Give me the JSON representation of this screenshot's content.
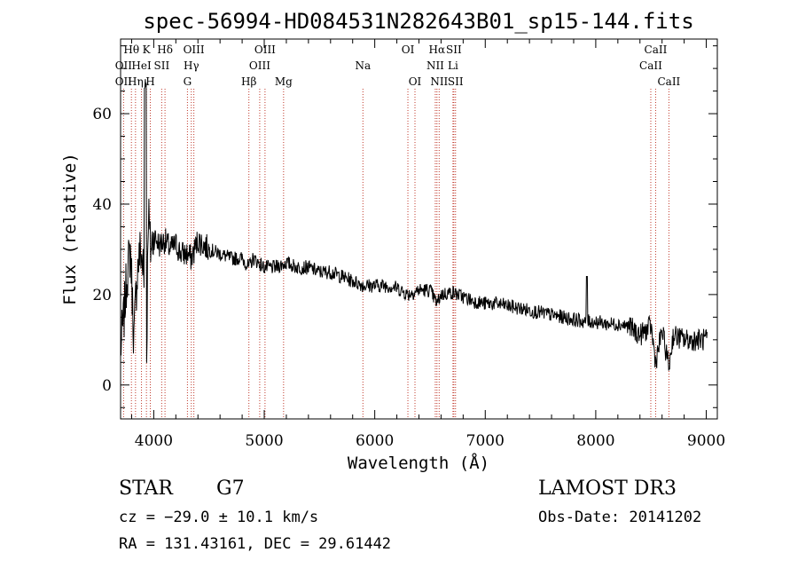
{
  "chart_data": {
    "type": "line",
    "title": "spec-56994-HD084531N282643B01_sp15-144.fits",
    "xlabel": "Wavelength (Å)",
    "ylabel": "Flux (relative)",
    "xlim": [
      3700,
      9100
    ],
    "ylim": [
      -7.5,
      76.5
    ],
    "xticks": [
      4000,
      5000,
      6000,
      7000,
      8000,
      9000
    ],
    "yticks": [
      0,
      20,
      40,
      60
    ],
    "series": [
      {
        "name": "spectrum",
        "anchor_x": [
          3700,
          3730,
          3760,
          3790,
          3820,
          3850,
          3880,
          3910,
          3935,
          3950,
          3970,
          4000,
          4050,
          4100,
          4150,
          4200,
          4250,
          4300,
          4340,
          4400,
          4500,
          4600,
          4700,
          4800,
          4860,
          4900,
          5000,
          5100,
          5200,
          5300,
          5400,
          5500,
          5600,
          5700,
          5800,
          5900,
          6000,
          6100,
          6200,
          6300,
          6400,
          6500,
          6563,
          6600,
          6700,
          6800,
          6900,
          7000,
          7100,
          7200,
          7300,
          7400,
          7500,
          7600,
          7700,
          7800,
          7900,
          8000,
          8100,
          8200,
          8300,
          8400,
          8500,
          8542,
          8600,
          8662,
          8700,
          8800,
          8900,
          9000
        ],
        "anchor_y": [
          8,
          15,
          25,
          30,
          10,
          25,
          30,
          25,
          3,
          40,
          30,
          33,
          31,
          32,
          30,
          31,
          29,
          29,
          28,
          32,
          30,
          29,
          28,
          28,
          26,
          28,
          26,
          26,
          27,
          26,
          26,
          25,
          25,
          24,
          23,
          22,
          22,
          22,
          21.5,
          20,
          21,
          21,
          18,
          20,
          20.5,
          19.5,
          18.5,
          18,
          18,
          17.5,
          17,
          16.5,
          16,
          15.5,
          15,
          14.5,
          14,
          14,
          13.5,
          13.5,
          13,
          11,
          13,
          5,
          12,
          4,
          11,
          10,
          10,
          10
        ]
      }
    ],
    "lines": [
      {
        "label": "Hθ",
        "x": 3798,
        "row": 0
      },
      {
        "label": "OII",
        "x": 3727,
        "row": 1
      },
      {
        "label": "OII",
        "x": 3727,
        "row": 2
      },
      {
        "label": "K",
        "x": 3934,
        "row": 0
      },
      {
        "label": "HeI",
        "x": 3889,
        "row": 1
      },
      {
        "label": "Hη",
        "x": 3835,
        "row": 2
      },
      {
        "label": "H",
        "x": 3969,
        "row": 2
      },
      {
        "label": "Hδ",
        "x": 4102,
        "row": 0
      },
      {
        "label": "SII",
        "x": 4072,
        "row": 1
      },
      {
        "label": "OIII",
        "x": 4363,
        "row": 0
      },
      {
        "label": "Hγ",
        "x": 4340,
        "row": 1
      },
      {
        "label": "G",
        "x": 4305,
        "row": 2
      },
      {
        "label": "OIII",
        "x": 5007,
        "row": 0
      },
      {
        "label": "OIII",
        "x": 4959,
        "row": 1
      },
      {
        "label": "Hβ",
        "x": 4861,
        "row": 2
      },
      {
        "label": "Mg",
        "x": 5175,
        "row": 2
      },
      {
        "label": "Na",
        "x": 5893,
        "row": 1
      },
      {
        "label": "OI",
        "x": 6300,
        "row": 0
      },
      {
        "label": "OI",
        "x": 6364,
        "row": 2
      },
      {
        "label": "Hα",
        "x": 6563,
        "row": 0
      },
      {
        "label": "SII",
        "x": 6716,
        "row": 0
      },
      {
        "label": "NII",
        "x": 6548,
        "row": 1
      },
      {
        "label": "Li",
        "x": 6708,
        "row": 1
      },
      {
        "label": "NII",
        "x": 6583,
        "row": 2
      },
      {
        "label": "SII",
        "x": 6731,
        "row": 2
      },
      {
        "label": "CaII",
        "x": 8542,
        "row": 0
      },
      {
        "label": "CaII",
        "x": 8498,
        "row": 1
      },
      {
        "label": "CaII",
        "x": 8662,
        "row": 2
      }
    ]
  },
  "info": {
    "class_label": "STAR",
    "subclass": "G7",
    "survey": "LAMOST DR3",
    "redshift": "cz = −29.0 ± 10.1 km/s",
    "obs_date": "Obs-Date: 20141202",
    "coords": "RA = 131.43161, DEC =  29.61442"
  },
  "colors": {
    "spectrum": "#000000",
    "line_marker": "#c0392b",
    "axes": "#000000"
  }
}
